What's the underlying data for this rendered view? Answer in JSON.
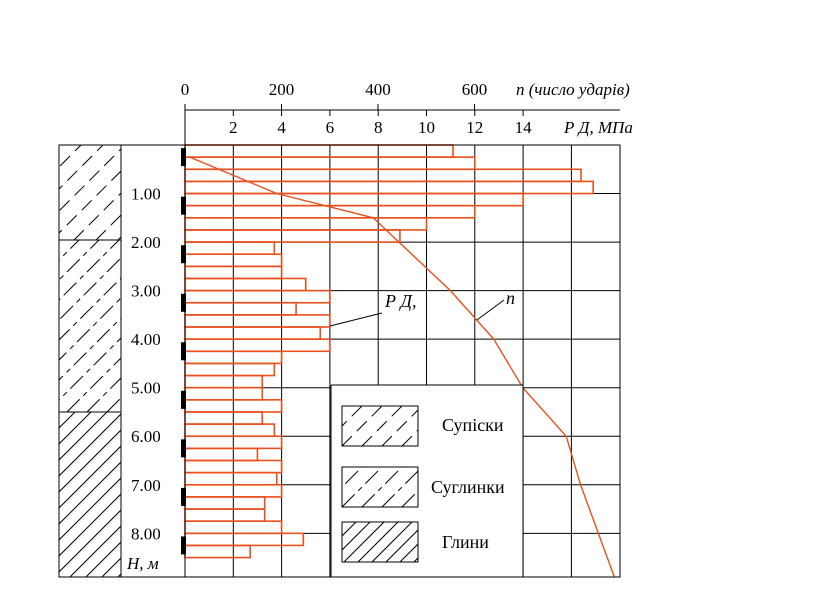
{
  "top_axis_n": {
    "ticks": [
      0,
      200,
      400,
      600
    ],
    "label": "n (число ударів)"
  },
  "top_axis_p": {
    "ticks": [
      2,
      4,
      6,
      8,
      10,
      12,
      14
    ],
    "label": "Р Д, МПа"
  },
  "depth_axis": {
    "ticks": [
      "1.00",
      "2.00",
      "3.00",
      "4.00",
      "5.00",
      "6.00",
      "7.00",
      "8.00"
    ],
    "label": "Н, м"
  },
  "annotations": {
    "pd_label": "Р Д,",
    "n_label": "n"
  },
  "legend": [
    {
      "key": "supisky",
      "label": "Супіски"
    },
    {
      "key": "suhlynky",
      "label": "Суглинки"
    },
    {
      "key": "hlyny",
      "label": "Глини"
    }
  ],
  "colors": {
    "bar_stroke": "#e8501e",
    "n_curve": "#e8501e",
    "grid": "#000000",
    "marker": "#000000"
  },
  "chart_data": {
    "type": "bar",
    "orientation": "horizontal",
    "depth_m_max": 8.9,
    "p_max_mpa": 18,
    "pd_profile": {
      "name": "Р Д,",
      "depth_bins_m": [
        [
          0.0,
          0.25
        ],
        [
          0.25,
          0.5
        ],
        [
          0.5,
          0.75
        ],
        [
          0.75,
          1.0
        ],
        [
          1.0,
          1.25
        ],
        [
          1.25,
          1.5
        ],
        [
          1.5,
          1.75
        ],
        [
          1.75,
          2.0
        ],
        [
          2.0,
          2.25
        ],
        [
          2.25,
          2.5
        ],
        [
          2.5,
          2.75
        ],
        [
          2.75,
          3.0
        ],
        [
          3.0,
          3.25
        ],
        [
          3.25,
          3.5
        ],
        [
          3.5,
          3.75
        ],
        [
          3.75,
          4.0
        ],
        [
          4.0,
          4.25
        ],
        [
          4.25,
          4.5
        ],
        [
          4.5,
          4.75
        ],
        [
          4.75,
          5.0
        ],
        [
          5.0,
          5.25
        ],
        [
          5.25,
          5.5
        ],
        [
          5.5,
          5.75
        ],
        [
          5.75,
          6.0
        ],
        [
          6.0,
          6.25
        ],
        [
          6.25,
          6.5
        ],
        [
          6.5,
          6.75
        ],
        [
          6.75,
          7.0
        ],
        [
          7.0,
          7.25
        ],
        [
          7.25,
          7.5
        ],
        [
          7.5,
          7.75
        ],
        [
          7.75,
          8.0
        ],
        [
          8.0,
          8.25
        ],
        [
          8.25,
          8.5
        ],
        [
          8.5,
          8.75
        ]
      ],
      "values_mpa": [
        11.1,
        12.0,
        16.4,
        16.9,
        14.0,
        12.0,
        10.0,
        8.9,
        3.7,
        4.0,
        4.0,
        5.0,
        6.0,
        4.6,
        6.0,
        5.6,
        6.0,
        4.0,
        3.7,
        3.2,
        3.2,
        4.0,
        3.2,
        3.7,
        4.0,
        3.0,
        4.0,
        3.8,
        4.0,
        3.3,
        3.3,
        4.0,
        4.9,
        2.7,
        0
      ]
    },
    "n_profile": {
      "name": "n",
      "units": "число ударів",
      "points": [
        {
          "n": 10,
          "depth_m": 0.25
        },
        {
          "n": 190,
          "depth_m": 1.0
        },
        {
          "n": 390,
          "depth_m": 1.5
        },
        {
          "n": 550,
          "depth_m": 3.0
        },
        {
          "n": 640,
          "depth_m": 4.0
        },
        {
          "n": 700,
          "depth_m": 5.0
        },
        {
          "n": 790,
          "depth_m": 6.0
        },
        {
          "n": 820,
          "depth_m": 7.0
        },
        {
          "n": 890,
          "depth_m": 8.9
        }
      ]
    },
    "soil_layers": [
      {
        "type": "Супіски",
        "from_m": 0.0,
        "to_m": 2.0
      },
      {
        "type": "Суглинки",
        "from_m": 2.0,
        "to_m": 5.5
      },
      {
        "type": "Глини",
        "from_m": 5.5,
        "to_m": 8.9
      }
    ],
    "test_markers_m": [
      0.25,
      1.25,
      2.25,
      3.25,
      4.25,
      5.25,
      6.25,
      7.25,
      8.25
    ]
  }
}
